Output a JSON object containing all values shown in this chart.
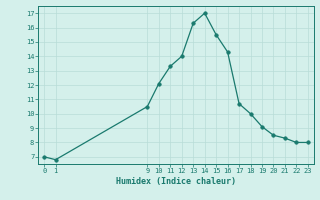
{
  "xlabel": "Humidex (Indice chaleur)",
  "x": [
    0,
    1,
    9,
    10,
    11,
    12,
    13,
    14,
    15,
    16,
    17,
    18,
    19,
    20,
    21,
    22,
    23
  ],
  "y": [
    7.0,
    6.8,
    10.5,
    12.1,
    13.3,
    14.0,
    16.3,
    17.0,
    15.5,
    14.3,
    10.7,
    10.0,
    9.1,
    8.5,
    8.3,
    8.0,
    8.0
  ],
  "line_color": "#1a7a6e",
  "marker_size": 2.5,
  "bg_color": "#d4f0eb",
  "grid_color": "#b8ddd7",
  "axis_color": "#1a7a6e",
  "tick_label_color": "#1a7a6e",
  "xlabel_color": "#1a7a6e",
  "ylim": [
    6.5,
    17.5
  ],
  "xlim": [
    -0.5,
    23.5
  ],
  "yticks": [
    7,
    8,
    9,
    10,
    11,
    12,
    13,
    14,
    15,
    16,
    17
  ],
  "xtick_positions": [
    0,
    1,
    9,
    10,
    11,
    12,
    13,
    14,
    15,
    16,
    17,
    18,
    19,
    20,
    21,
    22,
    23
  ],
  "xtick_labels": [
    "0",
    "1",
    "9",
    "10",
    "11",
    "12",
    "13",
    "14",
    "15",
    "16",
    "17",
    "18",
    "19",
    "20",
    "21",
    "22",
    "23"
  ]
}
